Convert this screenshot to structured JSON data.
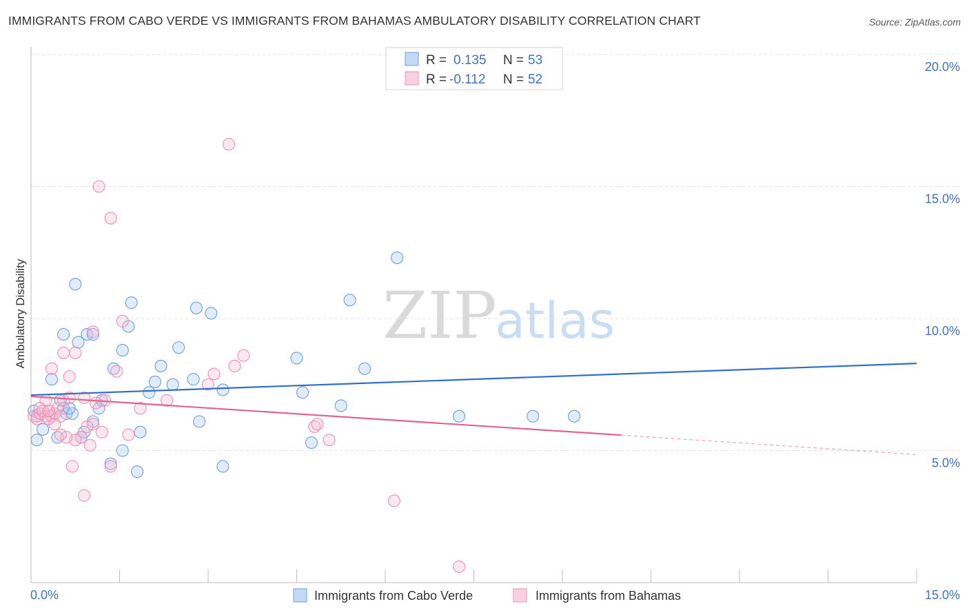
{
  "title": "IMMIGRANTS FROM CABO VERDE VS IMMIGRANTS FROM BAHAMAS AMBULATORY DISABILITY CORRELATION CHART",
  "source": "Source: ZipAtlas.com",
  "watermark": {
    "zip": "ZIP",
    "atlas": "atlas"
  },
  "colors": {
    "blue": "#6d9de0",
    "pink": "#f08fb0",
    "blue_line": "#2f6fc9",
    "pink_line": "#e0648f",
    "tick": "#3d73c6"
  },
  "chart_data": {
    "type": "scatter",
    "title": "IMMIGRANTS FROM CABO VERDE VS IMMIGRANTS FROM BAHAMAS AMBULATORY DISABILITY CORRELATION CHART",
    "xlabel": "",
    "ylabel": "Ambulatory Disability",
    "xlim": [
      0,
      15
    ],
    "ylim": [
      0,
      20
    ],
    "x_tick_labels": [
      "0.0%",
      "15.0%"
    ],
    "y_ticks": [
      5,
      10,
      15,
      20
    ],
    "y_tick_labels": [
      "5.0%",
      "10.0%",
      "15.0%",
      "20.0%"
    ],
    "grid": true,
    "legend": [
      {
        "r_label": "R =",
        "r": "0.135",
        "n_label": "N =",
        "n": "53"
      },
      {
        "r_label": "R =",
        "r": "-0.112",
        "n_label": "N =",
        "n": "52"
      }
    ],
    "series": [
      {
        "name": "Immigrants from Cabo Verde",
        "color": "#6d9de0",
        "trend": {
          "x0": 0.0,
          "y0": 7.1,
          "x1": 15.0,
          "y1": 8.3,
          "solid_to": 15.0
        },
        "points": [
          [
            0.05,
            6.5
          ],
          [
            0.1,
            6.3
          ],
          [
            0.15,
            6.4
          ],
          [
            0.2,
            5.8
          ],
          [
            0.3,
            6.5
          ],
          [
            0.4,
            6.4
          ],
          [
            0.5,
            6.9
          ],
          [
            0.55,
            6.6
          ],
          [
            0.6,
            6.4
          ],
          [
            0.7,
            6.4
          ],
          [
            0.35,
            7.7
          ],
          [
            0.55,
            9.4
          ],
          [
            0.75,
            11.3
          ],
          [
            0.8,
            9.1
          ],
          [
            0.95,
            9.4
          ],
          [
            1.05,
            9.4
          ],
          [
            1.15,
            6.6
          ],
          [
            1.2,
            6.9
          ],
          [
            1.4,
            8.1
          ],
          [
            1.55,
            8.8
          ],
          [
            1.65,
            9.7
          ],
          [
            1.7,
            10.6
          ],
          [
            1.8,
            4.2
          ],
          [
            1.85,
            5.7
          ],
          [
            1.55,
            5.0
          ],
          [
            1.35,
            4.5
          ],
          [
            2.0,
            7.2
          ],
          [
            2.1,
            7.6
          ],
          [
            2.2,
            8.2
          ],
          [
            2.4,
            7.5
          ],
          [
            2.5,
            8.9
          ],
          [
            2.75,
            7.7
          ],
          [
            2.8,
            10.4
          ],
          [
            2.85,
            6.1
          ],
          [
            3.05,
            10.2
          ],
          [
            3.25,
            7.3
          ],
          [
            3.25,
            4.4
          ],
          [
            4.5,
            8.5
          ],
          [
            4.6,
            7.2
          ],
          [
            4.75,
            5.3
          ],
          [
            5.25,
            6.7
          ],
          [
            5.4,
            10.7
          ],
          [
            5.65,
            8.1
          ],
          [
            6.2,
            12.3
          ],
          [
            7.25,
            6.3
          ],
          [
            8.5,
            6.3
          ],
          [
            9.2,
            6.3
          ],
          [
            0.1,
            5.4
          ],
          [
            0.45,
            5.5
          ],
          [
            0.85,
            5.5
          ],
          [
            0.9,
            5.7
          ],
          [
            1.05,
            6.1
          ],
          [
            0.65,
            6.6
          ]
        ]
      },
      {
        "name": "Immigrants from Bahamas",
        "color": "#f08fb0",
        "trend": {
          "x0": 0.0,
          "y0": 7.05,
          "x1": 15.0,
          "y1": 4.85,
          "solid_to": 10.0
        },
        "points": [
          [
            0.05,
            6.3
          ],
          [
            0.1,
            6.2
          ],
          [
            0.15,
            6.4
          ],
          [
            0.2,
            6.5
          ],
          [
            0.25,
            6.3
          ],
          [
            0.3,
            6.2
          ],
          [
            0.35,
            6.3
          ],
          [
            0.4,
            6.4
          ],
          [
            0.45,
            6.6
          ],
          [
            0.5,
            6.3
          ],
          [
            0.35,
            8.1
          ],
          [
            0.55,
            8.7
          ],
          [
            0.65,
            7.8
          ],
          [
            0.75,
            8.7
          ],
          [
            0.55,
            6.9
          ],
          [
            0.65,
            7.0
          ],
          [
            0.9,
            7.0
          ],
          [
            1.05,
            9.5
          ],
          [
            1.15,
            15.0
          ],
          [
            1.35,
            13.8
          ],
          [
            1.55,
            9.9
          ],
          [
            1.45,
            8.0
          ],
          [
            1.25,
            6.9
          ],
          [
            1.05,
            6.0
          ],
          [
            1.0,
            5.2
          ],
          [
            0.85,
            5.5
          ],
          [
            0.75,
            5.4
          ],
          [
            0.6,
            5.5
          ],
          [
            0.5,
            5.6
          ],
          [
            0.7,
            4.4
          ],
          [
            0.9,
            3.3
          ],
          [
            1.35,
            4.4
          ],
          [
            1.65,
            5.6
          ],
          [
            1.85,
            6.6
          ],
          [
            2.3,
            6.9
          ],
          [
            3.0,
            7.5
          ],
          [
            3.1,
            7.9
          ],
          [
            3.45,
            8.2
          ],
          [
            3.6,
            8.6
          ],
          [
            3.35,
            16.6
          ],
          [
            4.8,
            5.9
          ],
          [
            4.85,
            6.0
          ],
          [
            5.05,
            5.4
          ],
          [
            6.15,
            3.1
          ],
          [
            7.25,
            0.6
          ],
          [
            1.1,
            6.8
          ],
          [
            0.25,
            6.9
          ],
          [
            0.15,
            6.6
          ],
          [
            0.3,
            6.5
          ],
          [
            0.95,
            5.9
          ],
          [
            1.2,
            5.7
          ],
          [
            0.4,
            6.0
          ]
        ]
      }
    ]
  }
}
